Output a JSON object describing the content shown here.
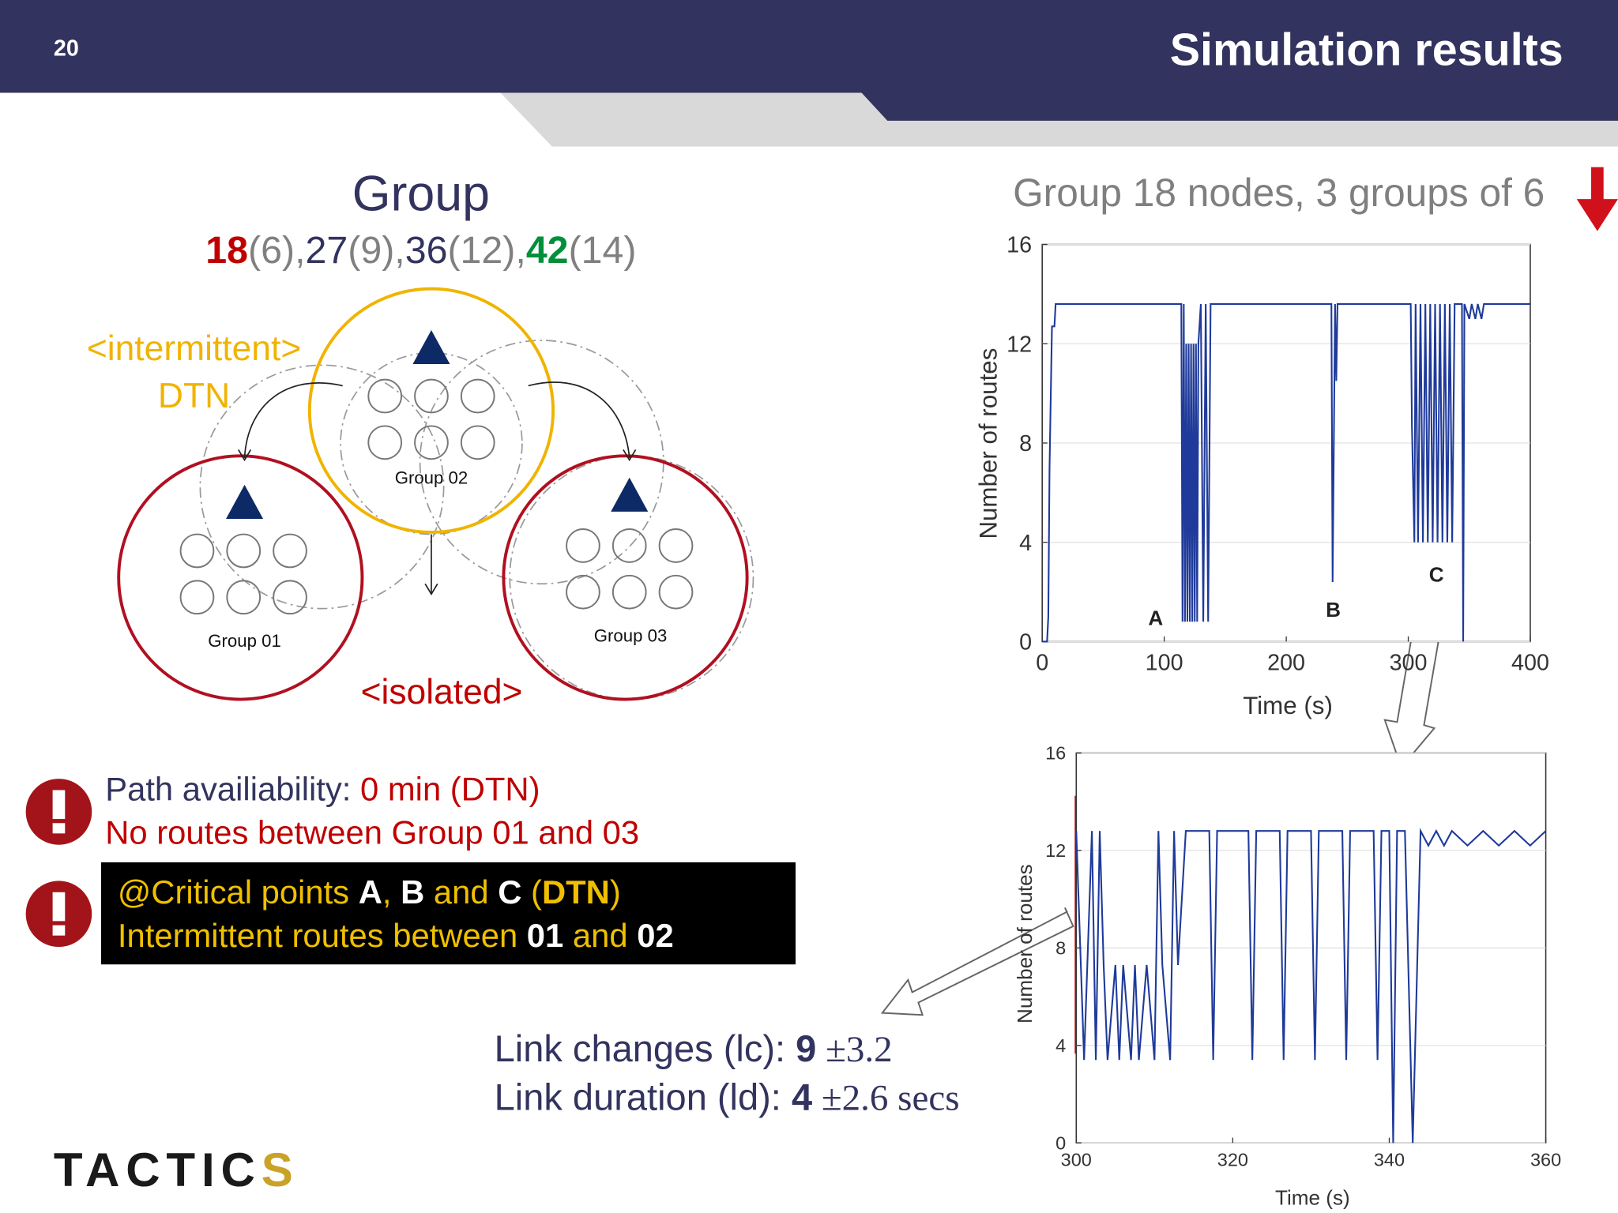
{
  "header": {
    "page_number": "20",
    "title": "Simulation results"
  },
  "diagram": {
    "title": "Group",
    "sizes": [
      {
        "text": "18",
        "color": "#c00000",
        "bold": true
      },
      {
        "text": "(6),",
        "color": "#808080"
      },
      {
        "text": "27",
        "color": "#33335f"
      },
      {
        "text": "(9),",
        "color": "#808080"
      },
      {
        "text": "36",
        "color": "#33335f"
      },
      {
        "text": "(12),",
        "color": "#808080"
      },
      {
        "text": "42",
        "color": "#00903a",
        "bold": true
      },
      {
        "text": "(14)",
        "color": "#808080"
      }
    ],
    "intermittent": "<intermittent>",
    "dtn": "DTN",
    "isolated": "<isolated>",
    "groups": [
      "Group 01",
      "Group 02",
      "Group 03"
    ]
  },
  "notes": [
    [
      {
        "text": "Path availiability: ",
        "color": "#33335f"
      },
      {
        "text": "0 min (DTN)",
        "color": "#c00000"
      }
    ],
    [
      {
        "text": "No routes between Group 01 and 03",
        "color": "#c00000"
      }
    ]
  ],
  "critical": [
    [
      {
        "text": "@Critical points ",
        "color": "#f0c000"
      },
      {
        "text": "A",
        "color": "#ffffff",
        "bold": true
      },
      {
        "text": ", ",
        "color": "#f0c000"
      },
      {
        "text": "B",
        "color": "#ffffff",
        "bold": true
      },
      {
        "text": " and ",
        "color": "#f0c000"
      },
      {
        "text": "C",
        "color": "#ffffff",
        "bold": true
      },
      {
        "text": " (",
        "color": "#f0c000"
      },
      {
        "text": "DTN",
        "color": "#f0c000",
        "bold": true
      },
      {
        "text": ")",
        "color": "#f0c000"
      }
    ],
    [
      {
        "text": "Intermittent routes between ",
        "color": "#f0c000"
      },
      {
        "text": "01",
        "color": "#ffffff",
        "bold": true
      },
      {
        "text": " and ",
        "color": "#f0c000"
      },
      {
        "text": "02",
        "color": "#ffffff",
        "bold": true
      }
    ]
  ],
  "stats": [
    [
      {
        "text": "Link changes (lc): ",
        "color": "#33335f"
      },
      {
        "text": "9",
        "color": "#33335f",
        "bold": true
      },
      {
        "text": " ±3.2",
        "color": "#33335f",
        "serif": true
      }
    ],
    [
      {
        "text": "Link duration (ld): ",
        "color": "#33335f"
      },
      {
        "text": "4",
        "color": "#33335f",
        "bold": true
      },
      {
        "text": " ±2.6 secs",
        "color": "#33335f",
        "serif": true
      }
    ]
  ],
  "logo": [
    {
      "text": "TACTIC",
      "color": "#1a1a1a",
      "bold": true
    },
    {
      "text": "S",
      "color": "#c9a227",
      "bold": true
    }
  ],
  "chart_data": [
    {
      "type": "line",
      "title": "Group 18 nodes, 3 groups of 6",
      "xlabel": "Time (s)",
      "ylabel": "Number of routes",
      "annotations": [
        "A",
        "B",
        "C"
      ],
      "xlim": [
        0,
        400
      ],
      "ylim": [
        0,
        16
      ],
      "xticks": [
        0,
        100,
        200,
        300,
        400
      ],
      "yticks": [
        0,
        4,
        8,
        12,
        16
      ],
      "grid": true,
      "x": [
        0,
        4,
        5,
        6,
        8,
        10,
        11,
        114,
        115,
        116,
        117,
        118,
        119,
        120,
        121,
        122,
        123,
        124,
        125,
        126,
        127,
        128,
        130,
        132,
        134,
        136,
        138,
        237,
        238,
        240,
        241,
        242,
        302,
        303,
        305,
        306,
        308,
        310,
        312,
        314,
        316,
        318,
        320,
        322,
        324,
        326,
        328,
        330,
        332,
        334,
        336,
        338,
        344,
        345,
        346,
        350,
        352,
        355,
        357,
        360,
        362,
        365,
        400
      ],
      "series": [
        {
          "color": "#1f3a9a",
          "values": [
            0,
            0,
            1,
            7,
            12.7,
            12.7,
            13.6,
            13.6,
            0.8,
            13.6,
            0.8,
            12,
            0.8,
            12,
            0.8,
            12,
            0.8,
            12,
            0.8,
            12,
            0.8,
            12,
            13.6,
            0.8,
            13.6,
            0.8,
            13.6,
            13.6,
            2.4,
            13.6,
            10.5,
            13.6,
            13.6,
            8.7,
            4,
            13.6,
            4,
            13.6,
            4,
            13.6,
            4,
            13.6,
            4,
            13.6,
            4,
            13.6,
            4,
            13.6,
            4,
            13.6,
            4,
            13.6,
            13.6,
            0,
            13.6,
            13,
            13.6,
            13,
            13.6,
            13,
            13.6,
            13.6,
            13.6
          ]
        }
      ]
    },
    {
      "type": "line",
      "xlabel": "Time (s)",
      "ylabel": "Number of routes",
      "xlim": [
        300,
        360
      ],
      "ylim": [
        0,
        16
      ],
      "xticks": [
        300,
        320,
        340,
        360
      ],
      "yticks": [
        0,
        4,
        8,
        12,
        16
      ],
      "grid": true,
      "x": [
        300,
        301,
        302,
        302.5,
        303,
        303.5,
        304,
        305,
        305.5,
        306,
        307,
        307.5,
        308,
        309,
        310,
        310.5,
        311,
        312,
        312.5,
        313,
        314,
        317,
        317.5,
        318,
        322,
        322.5,
        323,
        326,
        326.5,
        327,
        330,
        330.5,
        331,
        334,
        334.5,
        335,
        338,
        338.5,
        339,
        340,
        340.5,
        341,
        342,
        343,
        344,
        345,
        346,
        347,
        348,
        350,
        352,
        354,
        356,
        358,
        360
      ],
      "series": [
        {
          "color": "#1f3a9a",
          "values": [
            12.8,
            3.4,
            12.8,
            3.4,
            12.8,
            7.3,
            3.4,
            7.3,
            3.4,
            7.3,
            3.4,
            7.3,
            3.4,
            7.3,
            3.4,
            12.8,
            7.3,
            3.4,
            12.8,
            7.3,
            12.8,
            12.8,
            3.4,
            12.8,
            12.8,
            3.4,
            12.8,
            12.8,
            3.4,
            12.8,
            12.8,
            3.4,
            12.8,
            12.8,
            3.4,
            12.8,
            12.8,
            3.4,
            12.8,
            12.8,
            0,
            12.8,
            12.8,
            0,
            12.8,
            12.2,
            12.8,
            12.2,
            12.8,
            12.2,
            12.8,
            12.2,
            12.8,
            12.2,
            12.8
          ]
        }
      ]
    }
  ]
}
